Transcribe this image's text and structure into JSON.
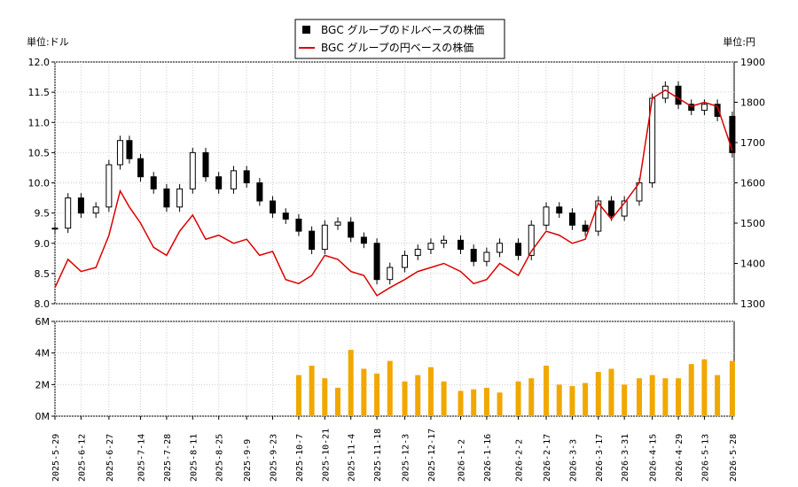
{
  "units": {
    "left": "単位:ドル",
    "right": "単位:円"
  },
  "legend": {
    "usd": "BGC グループのドルベースの株価",
    "jpy": "BGC グループの円ベースの株価"
  },
  "colors": {
    "candle": "#000000",
    "jpy_line": "#dd0000",
    "volume": "#f0a800",
    "grid": "#cccccc"
  },
  "chart_data": [
    {
      "type": "candlestick",
      "title": "",
      "legend_placement": "top-center",
      "grid": true,
      "ylim_left": [
        8.0,
        12.0
      ],
      "ylim_right": [
        1300,
        1900
      ],
      "yticks_left": [
        "8.0",
        "8.5",
        "9.0",
        "9.5",
        "10.0",
        "10.5",
        "11.0",
        "11.5",
        "12.0"
      ],
      "yticks_right": [
        "1300",
        "1400",
        "1500",
        "1600",
        "1700",
        "1800",
        "1900"
      ],
      "x_range": [
        "2025-05-29",
        "2026-05-29"
      ],
      "x_tick_labels": [
        "2025-5-29",
        "2025-6-12",
        "2025-6-27",
        "2025-7-14",
        "2025-7-28",
        "2025-8-11",
        "2025-8-25",
        "2025-9-9",
        "2025-9-23",
        "2025-10-7",
        "2025-10-21",
        "2025-11-4",
        "2025-11-18",
        "2025-12-3",
        "2025-12-17",
        "2026-1-2",
        "2026-1-16",
        "2026-2-2",
        "2026-2-17",
        "2026-3-3",
        "2026-3-17",
        "2026-3-31",
        "2026-4-15",
        "2026-4-29",
        "2026-5-13",
        "2026-5-28"
      ],
      "series": [
        {
          "name": "BGC グループのドルベースの株価",
          "style": "candlestick",
          "dates": [
            "2025-05-29",
            "2025-06-05",
            "2025-06-12",
            "2025-06-20",
            "2025-06-27",
            "2025-07-03",
            "2025-07-08",
            "2025-07-14",
            "2025-07-21",
            "2025-07-28",
            "2025-08-04",
            "2025-08-11",
            "2025-08-18",
            "2025-08-25",
            "2025-09-02",
            "2025-09-09",
            "2025-09-16",
            "2025-09-23",
            "2025-09-30",
            "2025-10-07",
            "2025-10-14",
            "2025-10-21",
            "2025-10-28",
            "2025-11-04",
            "2025-11-11",
            "2025-11-18",
            "2025-11-25",
            "2025-12-03",
            "2025-12-10",
            "2025-12-17",
            "2025-12-24",
            "2026-01-02",
            "2026-01-09",
            "2026-01-16",
            "2026-01-23",
            "2026-02-02",
            "2026-02-09",
            "2026-02-17",
            "2026-02-24",
            "2026-03-03",
            "2026-03-10",
            "2026-03-17",
            "2026-03-24",
            "2026-03-31",
            "2026-04-08",
            "2026-04-15",
            "2026-04-22",
            "2026-04-29",
            "2026-05-06",
            "2026-05-13",
            "2026-05-20",
            "2026-05-28"
          ],
          "close": [
            9.25,
            9.75,
            9.5,
            9.6,
            10.3,
            10.7,
            10.4,
            10.1,
            9.9,
            9.6,
            9.9,
            10.5,
            10.1,
            9.9,
            10.2,
            10.0,
            9.7,
            9.5,
            9.4,
            9.2,
            8.9,
            9.3,
            9.35,
            9.1,
            9.0,
            8.4,
            8.6,
            8.8,
            8.9,
            9.0,
            9.05,
            8.9,
            8.7,
            8.85,
            9.0,
            8.8,
            9.3,
            9.6,
            9.5,
            9.3,
            9.2,
            9.7,
            9.45,
            9.7,
            10.0,
            11.4,
            11.6,
            11.3,
            11.2,
            11.3,
            11.1,
            10.5
          ]
        },
        {
          "name": "BGC グループの円ベースの株価",
          "style": "line",
          "dates": [
            "2025-05-29",
            "2025-06-05",
            "2025-06-12",
            "2025-06-20",
            "2025-06-27",
            "2025-07-03",
            "2025-07-08",
            "2025-07-14",
            "2025-07-21",
            "2025-07-28",
            "2025-08-04",
            "2025-08-11",
            "2025-08-18",
            "2025-08-25",
            "2025-09-02",
            "2025-09-09",
            "2025-09-16",
            "2025-09-23",
            "2025-09-30",
            "2025-10-07",
            "2025-10-14",
            "2025-10-21",
            "2025-10-28",
            "2025-11-04",
            "2025-11-11",
            "2025-11-18",
            "2025-11-25",
            "2025-12-03",
            "2025-12-10",
            "2025-12-17",
            "2025-12-24",
            "2026-01-02",
            "2026-01-09",
            "2026-01-16",
            "2026-01-23",
            "2026-02-02",
            "2026-02-09",
            "2026-02-17",
            "2026-02-24",
            "2026-03-03",
            "2026-03-10",
            "2026-03-17",
            "2026-03-24",
            "2026-03-31",
            "2026-04-08",
            "2026-04-15",
            "2026-04-22",
            "2026-04-29",
            "2026-05-06",
            "2026-05-13",
            "2026-05-20",
            "2026-05-28"
          ],
          "values": [
            1340,
            1410,
            1380,
            1390,
            1470,
            1580,
            1540,
            1500,
            1440,
            1420,
            1480,
            1520,
            1460,
            1470,
            1450,
            1460,
            1420,
            1430,
            1360,
            1350,
            1370,
            1420,
            1410,
            1380,
            1370,
            1320,
            1340,
            1360,
            1380,
            1390,
            1400,
            1380,
            1350,
            1360,
            1400,
            1370,
            1430,
            1480,
            1470,
            1450,
            1460,
            1550,
            1510,
            1550,
            1600,
            1810,
            1830,
            1810,
            1790,
            1800,
            1790,
            1680
          ]
        }
      ]
    },
    {
      "type": "bar",
      "title": "",
      "ylim": [
        0,
        6000000
      ],
      "yticks": [
        "0M",
        "2M",
        "4M",
        "6M"
      ],
      "grid": true,
      "series": [
        {
          "name": "volume",
          "dates": [
            "2025-10-07",
            "2025-10-14",
            "2025-10-21",
            "2025-10-28",
            "2025-11-04",
            "2025-11-11",
            "2025-11-18",
            "2025-11-25",
            "2025-12-03",
            "2025-12-10",
            "2025-12-17",
            "2025-12-24",
            "2026-01-02",
            "2026-01-09",
            "2026-01-16",
            "2026-01-23",
            "2026-02-02",
            "2026-02-09",
            "2026-02-17",
            "2026-02-24",
            "2026-03-03",
            "2026-03-10",
            "2026-03-17",
            "2026-03-24",
            "2026-03-31",
            "2026-04-08",
            "2026-04-15",
            "2026-04-22",
            "2026-04-29",
            "2026-05-06",
            "2026-05-13",
            "2026-05-20",
            "2026-05-28"
          ],
          "values": [
            2600000,
            3200000,
            2400000,
            1800000,
            4200000,
            3000000,
            2700000,
            3500000,
            2200000,
            2600000,
            3100000,
            2200000,
            1600000,
            1700000,
            1800000,
            1500000,
            2200000,
            2400000,
            3200000,
            2000000,
            1900000,
            2100000,
            2800000,
            3000000,
            2000000,
            2400000,
            2600000,
            2400000,
            2400000,
            3300000,
            3600000,
            2600000,
            3500000
          ]
        }
      ]
    }
  ]
}
